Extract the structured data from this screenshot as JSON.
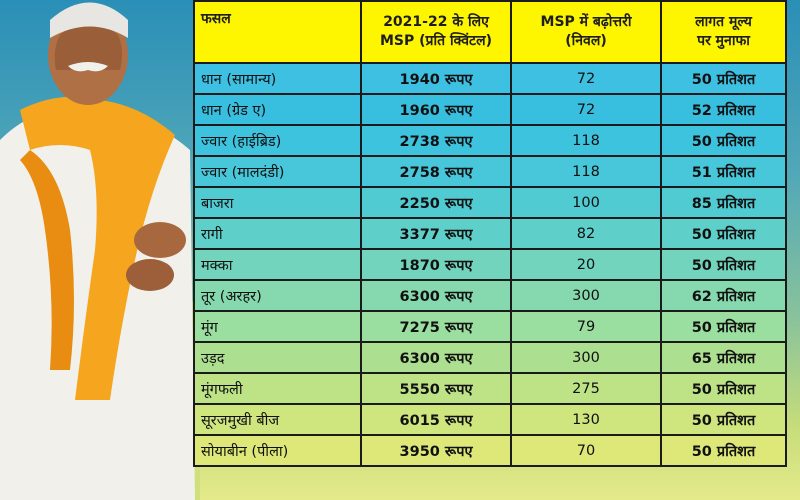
{
  "headers": {
    "crop": "फसल",
    "msp_line1": "2021-22 के लिए",
    "msp_line2": "MSP (प्रति क्विंटल)",
    "increase_line1": "MSP में बढ़ोत्तरी",
    "increase_line2": "(निवल)",
    "profit_line1": "लागत मूल्य",
    "profit_line2": "पर मुनाफा"
  },
  "rows": [
    {
      "crop": "धान (सामान्य)",
      "msp": "1940 रूपए",
      "increase": "72",
      "profit": "50 प्रतिशत"
    },
    {
      "crop": "धान (ग्रेड ए)",
      "msp": "1960 रूपए",
      "increase": "72",
      "profit": "52 प्रतिशत"
    },
    {
      "crop": "ज्वार (हाईब्रिड)",
      "msp": "2738 रूपए",
      "increase": "118",
      "profit": "50 प्रतिशत"
    },
    {
      "crop": "ज्वार (मालदंडी)",
      "msp": "2758 रूपए",
      "increase": "118",
      "profit": "51 प्रतिशत"
    },
    {
      "crop": "बाजरा",
      "msp": "2250 रूपए",
      "increase": "100",
      "profit": "85 प्रतिशत"
    },
    {
      "crop": "रागी",
      "msp": "3377 रूपए",
      "increase": "82",
      "profit": "50 प्रतिशत"
    },
    {
      "crop": "मक्का",
      "msp": "1870 रूपए",
      "increase": "20",
      "profit": "50 प्रतिशत"
    },
    {
      "crop": "तूर (अरहर)",
      "msp": "6300 रूपए",
      "increase": "300",
      "profit": "62 प्रतिशत"
    },
    {
      "crop": "मूंग",
      "msp": "7275 रूपए",
      "increase": "79",
      "profit": "50 प्रतिशत"
    },
    {
      "crop": "उड़द",
      "msp": "6300 रूपए",
      "increase": "300",
      "profit": "65 प्रतिशत"
    },
    {
      "crop": "मूंगफली",
      "msp": "5550 रूपए",
      "increase": "275",
      "profit": "50 प्रतिशत"
    },
    {
      "crop": "सूरजमुखी बीज",
      "msp": "6015 रूपए",
      "increase": "130",
      "profit": "50 प्रतिशत"
    },
    {
      "crop": "सोयाबीन (पीला)",
      "msp": "3950 रूपए",
      "increase": "70",
      "profit": "50 प्रतिशत"
    }
  ],
  "colors": {
    "header_bg": "#fef500",
    "row_top": "#3dc0e2",
    "row_bottom": "#dde878",
    "border": "#1b1b1b"
  }
}
